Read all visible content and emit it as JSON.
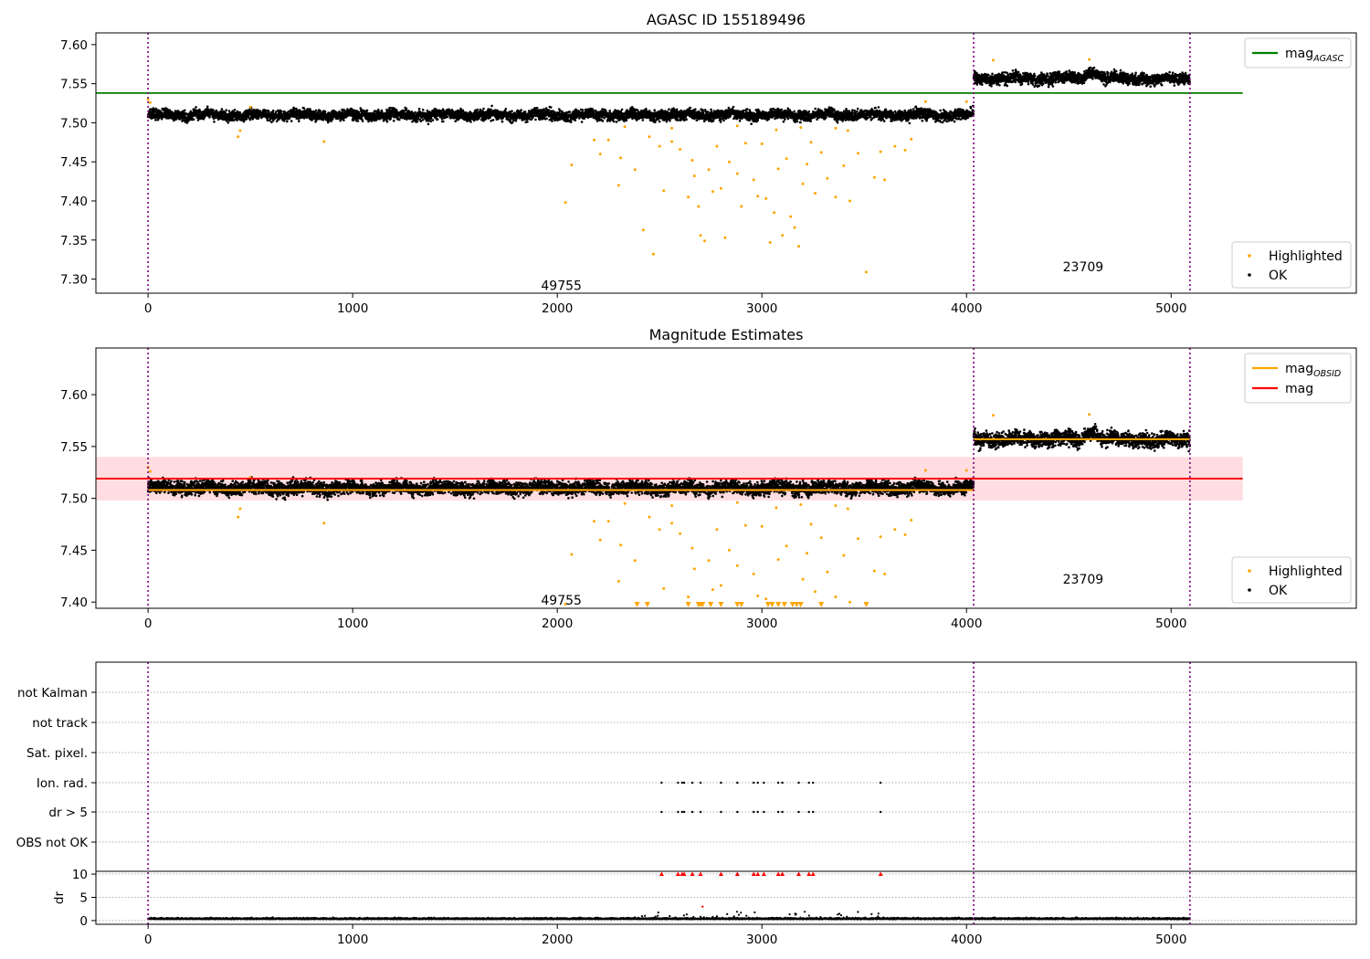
{
  "chart_data": [
    {
      "type": "scatter",
      "title": "AGASC ID 155189496",
      "xlim": [
        -255,
        5905
      ],
      "ylim": [
        7.282,
        7.615
      ],
      "xticks": [
        0,
        1000,
        2000,
        3000,
        4000,
        5000
      ],
      "yticks": [
        "7.30",
        "7.35",
        "7.40",
        "7.45",
        "7.50",
        "7.55",
        "7.60"
      ],
      "obsid_boundaries": [
        0,
        4035,
        5092
      ],
      "obsid_labels": [
        {
          "text": "49755",
          "x": 2020,
          "y": 7.292
        },
        {
          "text": "23709",
          "x": 4570,
          "y": 7.316
        }
      ],
      "lines": [
        {
          "name": "mag",
          "sub": "AGASC",
          "color": "#008000",
          "x": [
            -255,
            5350
          ],
          "y": [
            7.538,
            7.538
          ]
        }
      ],
      "series": [
        {
          "name": "Highlighted",
          "color": "#ffa500"
        },
        {
          "name": "OK",
          "color": "#000000"
        }
      ],
      "ok_segments": [
        {
          "x": [
            0,
            4035
          ],
          "center": 7.51,
          "spread": 0.0045
        },
        {
          "x": [
            4035,
            5092
          ],
          "center": 7.557,
          "spread": 0.005
        }
      ],
      "highlighted_points": [
        [
          2040,
          7.398
        ],
        [
          2070,
          7.446
        ],
        [
          2180,
          7.478
        ],
        [
          2210,
          7.46
        ],
        [
          2250,
          7.478
        ],
        [
          2300,
          7.42
        ],
        [
          2310,
          7.455
        ],
        [
          2330,
          7.495
        ],
        [
          2380,
          7.44
        ],
        [
          2420,
          7.363
        ],
        [
          2450,
          7.482
        ],
        [
          2470,
          7.332
        ],
        [
          2500,
          7.47
        ],
        [
          2520,
          7.413
        ],
        [
          2560,
          7.476
        ],
        [
          2600,
          7.466
        ],
        [
          2640,
          7.405
        ],
        [
          2660,
          7.452
        ],
        [
          2670,
          7.432
        ],
        [
          2690,
          7.393
        ],
        [
          2700,
          7.356
        ],
        [
          2720,
          7.349
        ],
        [
          2740,
          7.44
        ],
        [
          2760,
          7.412
        ],
        [
          2780,
          7.47
        ],
        [
          2800,
          7.416
        ],
        [
          2820,
          7.353
        ],
        [
          2840,
          7.45
        ],
        [
          2880,
          7.435
        ],
        [
          2900,
          7.393
        ],
        [
          2920,
          7.474
        ],
        [
          2960,
          7.427
        ],
        [
          2980,
          7.406
        ],
        [
          3000,
          7.473
        ],
        [
          3020,
          7.403
        ],
        [
          3040,
          7.347
        ],
        [
          3060,
          7.385
        ],
        [
          3080,
          7.441
        ],
        [
          3100,
          7.356
        ],
        [
          3120,
          7.454
        ],
        [
          3140,
          7.38
        ],
        [
          3160,
          7.366
        ],
        [
          3180,
          7.342
        ],
        [
          3200,
          7.422
        ],
        [
          3220,
          7.447
        ],
        [
          3240,
          7.475
        ],
        [
          3260,
          7.41
        ],
        [
          3290,
          7.462
        ],
        [
          3320,
          7.429
        ],
        [
          3360,
          7.405
        ],
        [
          3400,
          7.445
        ],
        [
          3430,
          7.4
        ],
        [
          3470,
          7.461
        ],
        [
          3510,
          7.309
        ],
        [
          3550,
          7.43
        ],
        [
          3580,
          7.463
        ],
        [
          3600,
          7.427
        ],
        [
          3700,
          7.465
        ],
        [
          3730,
          7.479
        ],
        [
          440,
          7.482
        ],
        [
          450,
          7.49
        ],
        [
          860,
          7.476
        ],
        [
          2560,
          7.493
        ],
        [
          2880,
          7.496
        ],
        [
          3070,
          7.491
        ],
        [
          3190,
          7.494
        ],
        [
          3360,
          7.493
        ],
        [
          3420,
          7.49
        ],
        [
          3650,
          7.47
        ],
        [
          3800,
          7.527
        ],
        [
          4000,
          7.527
        ],
        [
          4130,
          7.58
        ],
        [
          4600,
          7.581
        ],
        [
          0,
          7.53
        ],
        [
          10,
          7.526
        ],
        [
          500,
          7.52
        ]
      ]
    },
    {
      "type": "scatter",
      "title": "Magnitude Estimates",
      "xlim": [
        -255,
        5905
      ],
      "ylim": [
        7.394,
        7.645
      ],
      "xticks": [
        0,
        1000,
        2000,
        3000,
        4000,
        5000
      ],
      "yticks": [
        "7.40",
        "7.45",
        "7.50",
        "7.55",
        "7.60"
      ],
      "obsid_boundaries": [
        0,
        4035,
        5092
      ],
      "obsid_labels": [
        {
          "text": "49755",
          "x": 2020,
          "y": 7.402
        },
        {
          "text": "23709",
          "x": 4570,
          "y": 7.422
        }
      ],
      "band": {
        "x": [
          -255,
          5350
        ],
        "y": [
          7.498,
          7.54
        ],
        "color": "#ffdde0"
      },
      "lines": [
        {
          "name": "mag",
          "sub": "OBSID",
          "color": "#ffa500",
          "segments": [
            {
              "x": [
                0,
                4035
              ],
              "y": 7.508
            },
            {
              "x": [
                4035,
                5092
              ],
              "y": 7.557
            }
          ]
        },
        {
          "name": "mag",
          "sub": "",
          "color": "#ff0000",
          "x": [
            -255,
            5350
          ],
          "y": [
            7.519,
            7.519
          ]
        }
      ],
      "series": [
        {
          "name": "Highlighted",
          "color": "#ffa500"
        },
        {
          "name": "OK",
          "color": "#000000"
        }
      ],
      "ok_segments": [
        {
          "x": [
            0,
            4035
          ],
          "center": 7.51,
          "spread": 0.0045
        },
        {
          "x": [
            4035,
            5092
          ],
          "center": 7.557,
          "spread": 0.005
        }
      ],
      "clipped_marker_x": [
        2390,
        2440,
        2640,
        2690,
        2700,
        2710,
        2750,
        2800,
        2880,
        2900,
        3030,
        3050,
        3080,
        3110,
        3150,
        3170,
        3190,
        3290,
        3510
      ]
    },
    {
      "type": "scatter",
      "title": "",
      "xlim": [
        -255,
        5905
      ],
      "xticks": [
        0,
        1000,
        2000,
        3000,
        4000,
        5000
      ],
      "categories": [
        "not Kalman",
        "not track",
        "Sat. pixel.",
        "Ion. rad.",
        "dr > 5",
        "OBS not OK"
      ],
      "flag_x": [
        2510,
        2590,
        2610,
        2620,
        2660,
        2700,
        2800,
        2880,
        2960,
        2980,
        3010,
        3080,
        3100,
        3180,
        3230,
        3250,
        3580
      ],
      "flagged_rows": [
        "Ion. rad.",
        "dr > 5"
      ],
      "dr_panel": {
        "ylabel": "dr",
        "ylim": [
          -0.8,
          10.6
        ],
        "yticks": [
          "0",
          "5",
          "10"
        ],
        "clip_value": 10,
        "clip_color": "#ff0000",
        "baseline_center": 0.3,
        "baseline_spread": 0.18
      }
    }
  ]
}
